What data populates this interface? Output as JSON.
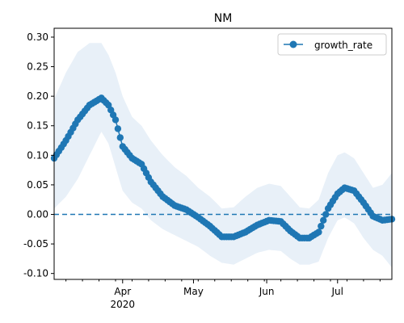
{
  "chart_data": {
    "type": "line",
    "title": "NM",
    "xlabel": "",
    "ylabel": "",
    "ylim": [
      -0.11,
      0.315
    ],
    "xlim": [
      "2020-03-03",
      "2020-07-24"
    ],
    "x_ticks": [
      {
        "date": "2020-04-01",
        "label": "Apr",
        "sublabel": "2020"
      },
      {
        "date": "2020-05-01",
        "label": "May",
        "sublabel": ""
      },
      {
        "date": "2020-06-01",
        "label": "Jun",
        "sublabel": ""
      },
      {
        "date": "2020-07-01",
        "label": "Jul",
        "sublabel": ""
      }
    ],
    "y_ticks": [
      "-0.10",
      "-0.05",
      "0.00",
      "0.05",
      "0.10",
      "0.15",
      "0.20",
      "0.25",
      "0.30"
    ],
    "y_tick_values": [
      -0.1,
      -0.05,
      0.0,
      0.05,
      0.1,
      0.15,
      0.2,
      0.25,
      0.3
    ],
    "reference_line": {
      "y": 0.0,
      "style": "dashed"
    },
    "legend": {
      "position": "top-right",
      "entries": [
        "growth_rate"
      ]
    },
    "series": [
      {
        "name": "growth_rate",
        "color": "#1f77b4",
        "band_color": "#e8f0f8",
        "keypoints": [
          {
            "x": "2020-03-03",
            "y": 0.095,
            "lo": 0.01,
            "hi": 0.195
          },
          {
            "x": "2020-03-08",
            "y": 0.125,
            "lo": 0.03,
            "hi": 0.24
          },
          {
            "x": "2020-03-13",
            "y": 0.16,
            "lo": 0.06,
            "hi": 0.275
          },
          {
            "x": "2020-03-18",
            "y": 0.185,
            "lo": 0.1,
            "hi": 0.29
          },
          {
            "x": "2020-03-23",
            "y": 0.197,
            "lo": 0.14,
            "hi": 0.29
          },
          {
            "x": "2020-03-26",
            "y": 0.185,
            "lo": 0.12,
            "hi": 0.27
          },
          {
            "x": "2020-03-29",
            "y": 0.16,
            "lo": 0.08,
            "hi": 0.24
          },
          {
            "x": "2020-04-01",
            "y": 0.115,
            "lo": 0.04,
            "hi": 0.2
          },
          {
            "x": "2020-04-05",
            "y": 0.095,
            "lo": 0.02,
            "hi": 0.165
          },
          {
            "x": "2020-04-09",
            "y": 0.085,
            "lo": 0.01,
            "hi": 0.15
          },
          {
            "x": "2020-04-13",
            "y": 0.055,
            "lo": -0.01,
            "hi": 0.125
          },
          {
            "x": "2020-04-18",
            "y": 0.03,
            "lo": -0.025,
            "hi": 0.1
          },
          {
            "x": "2020-04-23",
            "y": 0.015,
            "lo": -0.035,
            "hi": 0.08
          },
          {
            "x": "2020-04-28",
            "y": 0.008,
            "lo": -0.045,
            "hi": 0.065
          },
          {
            "x": "2020-05-03",
            "y": -0.005,
            "lo": -0.055,
            "hi": 0.045
          },
          {
            "x": "2020-05-08",
            "y": -0.02,
            "lo": -0.07,
            "hi": 0.03
          },
          {
            "x": "2020-05-13",
            "y": -0.038,
            "lo": -0.082,
            "hi": 0.01
          },
          {
            "x": "2020-05-18",
            "y": -0.038,
            "lo": -0.085,
            "hi": 0.012
          },
          {
            "x": "2020-05-23",
            "y": -0.03,
            "lo": -0.075,
            "hi": 0.03
          },
          {
            "x": "2020-05-28",
            "y": -0.018,
            "lo": -0.065,
            "hi": 0.045
          },
          {
            "x": "2020-06-02",
            "y": -0.01,
            "lo": -0.06,
            "hi": 0.052
          },
          {
            "x": "2020-06-07",
            "y": -0.012,
            "lo": -0.062,
            "hi": 0.048
          },
          {
            "x": "2020-06-11",
            "y": -0.028,
            "lo": -0.075,
            "hi": 0.03
          },
          {
            "x": "2020-06-15",
            "y": -0.04,
            "lo": -0.085,
            "hi": 0.012
          },
          {
            "x": "2020-06-19",
            "y": -0.04,
            "lo": -0.085,
            "hi": 0.01
          },
          {
            "x": "2020-06-23",
            "y": -0.03,
            "lo": -0.08,
            "hi": 0.025
          },
          {
            "x": "2020-06-27",
            "y": 0.01,
            "lo": -0.04,
            "hi": 0.07
          },
          {
            "x": "2020-07-01",
            "y": 0.035,
            "lo": -0.01,
            "hi": 0.1
          },
          {
            "x": "2020-07-04",
            "y": 0.045,
            "lo": -0.005,
            "hi": 0.105
          },
          {
            "x": "2020-07-08",
            "y": 0.04,
            "lo": -0.015,
            "hi": 0.095
          },
          {
            "x": "2020-07-12",
            "y": 0.02,
            "lo": -0.04,
            "hi": 0.07
          },
          {
            "x": "2020-07-16",
            "y": -0.003,
            "lo": -0.06,
            "hi": 0.045
          },
          {
            "x": "2020-07-20",
            "y": -0.01,
            "lo": -0.07,
            "hi": 0.05
          },
          {
            "x": "2020-07-24",
            "y": -0.008,
            "lo": -0.09,
            "hi": 0.07
          }
        ]
      }
    ]
  }
}
